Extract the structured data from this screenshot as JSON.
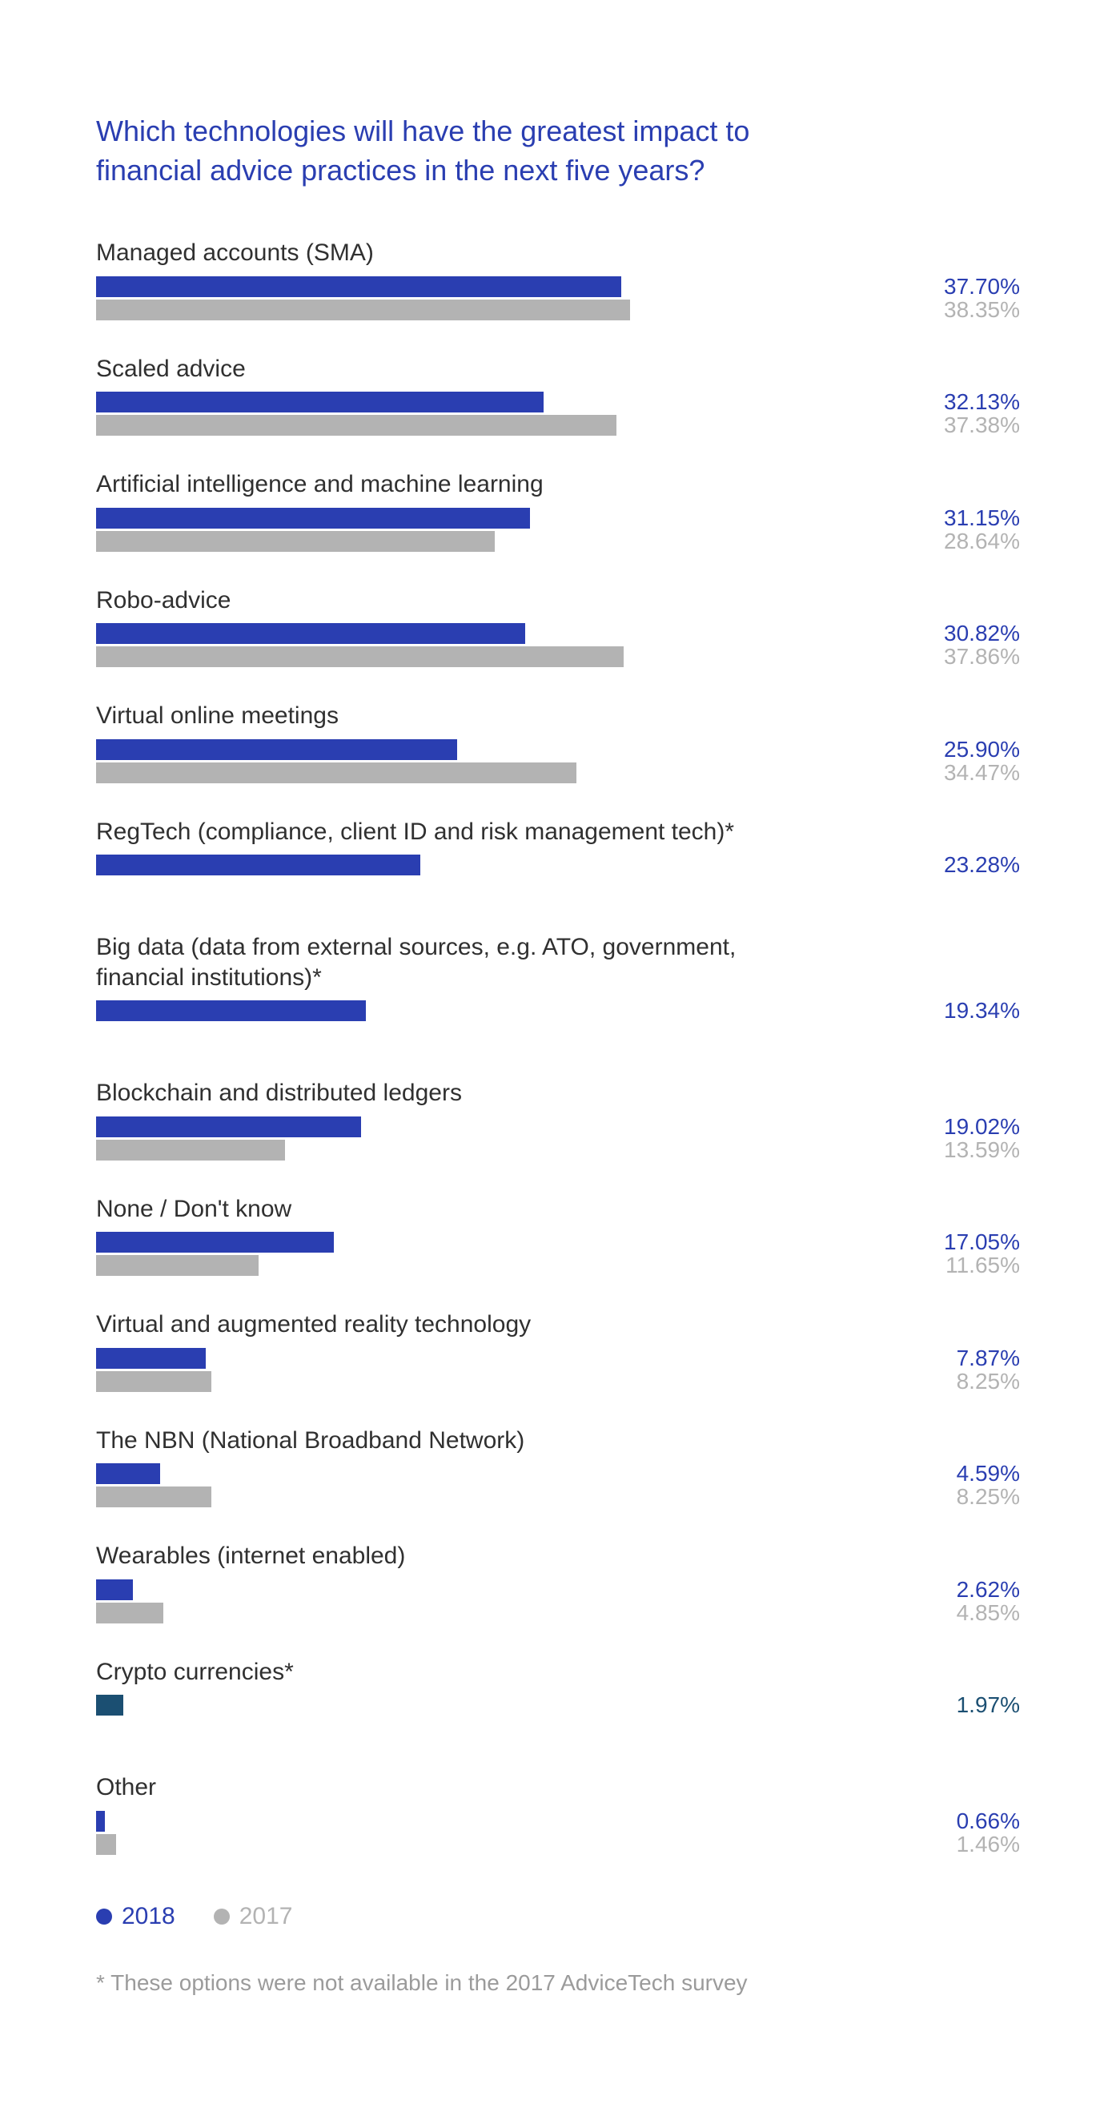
{
  "title": "Which technologies will have the greatest impact to financial advice practices in the next five years?",
  "colors": {
    "primary": "#2a3eb1",
    "secondary": "#b3b3b3",
    "title": "#2a3eb1",
    "label_text": "#303030",
    "value_primary": "#2a3eb1",
    "value_secondary": "#b3b3b3",
    "crypto": "#1b4f72",
    "background": "#ffffff"
  },
  "scale_max": 50,
  "items": [
    {
      "label": "Managed accounts (SMA)",
      "v2018": 37.7,
      "v2017": 38.35
    },
    {
      "label": "Scaled advice",
      "v2018": 32.13,
      "v2017": 37.38
    },
    {
      "label": "Artificial intelligence and machine learning",
      "v2018": 31.15,
      "v2017": 28.64
    },
    {
      "label": "Robo-advice",
      "v2018": 30.82,
      "v2017": 37.86
    },
    {
      "label": "Virtual online meetings",
      "v2018": 25.9,
      "v2017": 34.47
    },
    {
      "label": "RegTech (compliance, client ID and risk management tech)*",
      "v2018": 23.28,
      "v2017": null
    },
    {
      "label": "Big data (data from external sources, e.g. ATO, government, financial institutions)*",
      "v2018": 19.34,
      "v2017": null
    },
    {
      "label": "Blockchain and distributed ledgers",
      "v2018": 19.02,
      "v2017": 13.59
    },
    {
      "label": "None / Don't know",
      "v2018": 17.05,
      "v2017": 11.65
    },
    {
      "label": "Virtual and augmented reality technology",
      "v2018": 7.87,
      "v2017": 8.25
    },
    {
      "label": "The NBN (National Broadband Network)",
      "v2018": 4.59,
      "v2017": 8.25
    },
    {
      "label": "Wearables (internet enabled)",
      "v2018": 2.62,
      "v2017": 4.85
    },
    {
      "label": "Crypto currencies*",
      "v2018": 1.97,
      "v2017": null,
      "color2018": "#1b4f72"
    },
    {
      "label": "Other",
      "v2018": 0.66,
      "v2017": 1.46
    }
  ],
  "legend": {
    "y2018": "2018",
    "y2017": "2017"
  },
  "footnote": "* These options were not available in the 2017 AdviceTech survey"
}
